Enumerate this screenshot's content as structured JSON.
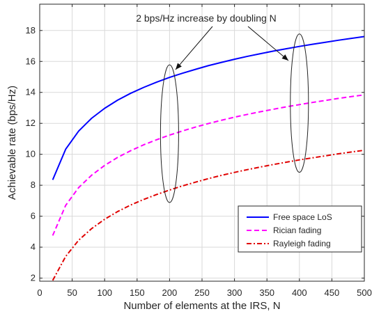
{
  "chart_data": {
    "type": "line",
    "title": "",
    "xlabel": "Number of elements at the IRS, N",
    "ylabel": "Achievable rate (bps/Hz)",
    "xlim": [
      0,
      500
    ],
    "ylim": [
      1.8,
      19.7
    ],
    "xticks": [
      0,
      50,
      100,
      150,
      200,
      250,
      300,
      350,
      400,
      450,
      500
    ],
    "yticks": [
      2,
      4,
      6,
      8,
      10,
      12,
      14,
      16,
      18
    ],
    "grid": true,
    "legend_position": "bottom-right",
    "x": [
      20,
      40,
      60,
      80,
      100,
      120,
      140,
      160,
      180,
      200,
      220,
      240,
      260,
      280,
      300,
      320,
      340,
      360,
      380,
      400,
      420,
      440,
      460,
      480,
      500
    ],
    "series": [
      {
        "name": "Free space LoS",
        "color": "#0000ff",
        "dash": "solid",
        "values": [
          8.35,
          10.33,
          11.5,
          12.33,
          12.97,
          13.5,
          13.94,
          14.32,
          14.66,
          14.97,
          15.24,
          15.49,
          15.73,
          15.94,
          16.14,
          16.33,
          16.5,
          16.67,
          16.82,
          16.97,
          17.11,
          17.24,
          17.37,
          17.49,
          17.61
        ]
      },
      {
        "name": "Rician fading",
        "color": "#ff00ff",
        "dash": "dashed",
        "values": [
          4.75,
          6.7,
          7.85,
          8.65,
          9.28,
          9.8,
          10.23,
          10.61,
          10.94,
          11.24,
          11.51,
          11.76,
          11.99,
          12.2,
          12.4,
          12.58,
          12.75,
          12.91,
          13.07,
          13.21,
          13.35,
          13.48,
          13.61,
          13.73,
          13.84
        ]
      },
      {
        "name": "Rayleigh fading",
        "color": "#e00000",
        "dash": "dash-dot",
        "values": [
          1.85,
          3.4,
          4.45,
          5.2,
          5.8,
          6.3,
          6.72,
          7.08,
          7.4,
          7.69,
          7.96,
          8.2,
          8.43,
          8.64,
          8.83,
          9.01,
          9.18,
          9.34,
          9.49,
          9.64,
          9.77,
          9.9,
          10.03,
          10.15,
          10.26
        ]
      }
    ],
    "annotations": [
      {
        "text": "2 bps/Hz increase by doubling N"
      }
    ],
    "marked_groups": [
      {
        "x": 200
      },
      {
        "x": 400
      }
    ]
  }
}
